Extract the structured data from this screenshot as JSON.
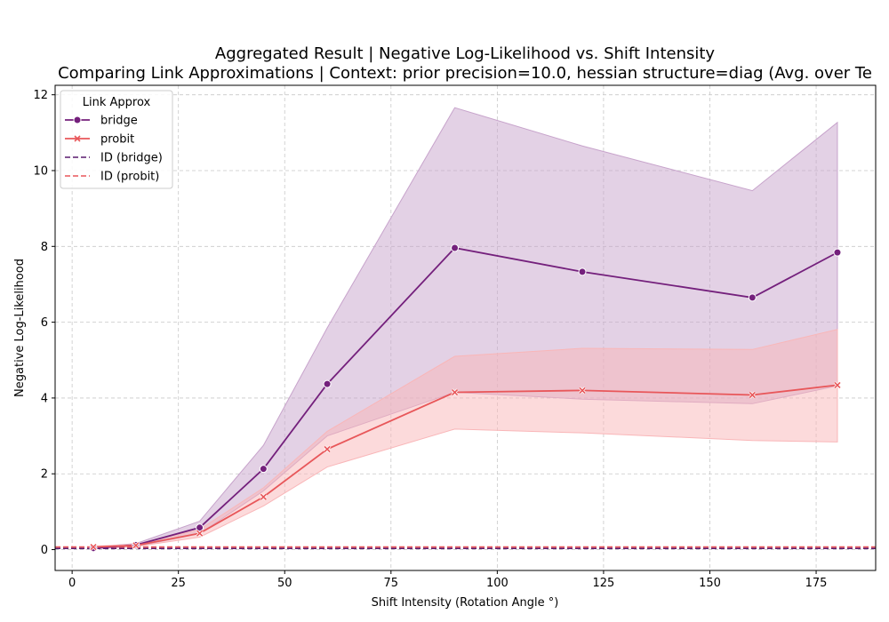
{
  "chart_data": {
    "type": "line",
    "title": "Aggregated Result | Negative Log-Likelihood vs. Shift Intensity",
    "subtitle": "Comparing Link Approximations | Context: prior precision=10.0, hessian structure=diag (Avg. over Te",
    "xlabel": "Shift Intensity (Rotation Angle °)",
    "ylabel": "Negative Log-Likelihood",
    "xlim": [
      -4,
      189
    ],
    "ylim": [
      -0.55,
      12.25
    ],
    "xticks": [
      0,
      25,
      50,
      75,
      100,
      125,
      150,
      175
    ],
    "yticks": [
      0,
      2,
      4,
      6,
      8,
      10,
      12
    ],
    "grid": true,
    "legend": {
      "title": "Link Approx",
      "position": "top-left",
      "entries": [
        {
          "label": "bridge",
          "style": "solid-circle",
          "color": "#74207c"
        },
        {
          "label": "probit",
          "style": "solid-x",
          "color": "#e8575a"
        },
        {
          "label": "ID (bridge)",
          "style": "dashed",
          "color": "#5a1a6e"
        },
        {
          "label": "ID (probit)",
          "style": "dashed",
          "color": "#e8575a"
        }
      ]
    },
    "x": [
      5,
      15,
      30,
      45,
      60,
      90,
      120,
      160,
      180
    ],
    "series": [
      {
        "name": "bridge",
        "color": "#74207c",
        "band_color": "#c7a3cb",
        "marker": "circle",
        "values": [
          0.04,
          0.12,
          0.58,
          2.13,
          4.37,
          7.96,
          7.33,
          6.65,
          7.84
        ],
        "lower": [
          0.02,
          0.08,
          0.42,
          1.55,
          3.0,
          4.15,
          3.97,
          3.85,
          4.32
        ],
        "upper": [
          0.07,
          0.16,
          0.75,
          2.75,
          5.85,
          11.66,
          10.65,
          9.47,
          11.27
        ]
      },
      {
        "name": "probit",
        "color": "#e8575a",
        "band_color": "#f9b6b8",
        "marker": "x",
        "values": [
          0.07,
          0.11,
          0.43,
          1.39,
          2.65,
          4.15,
          4.2,
          4.08,
          4.34
        ],
        "lower": [
          0.05,
          0.08,
          0.33,
          1.15,
          2.18,
          3.18,
          3.08,
          2.88,
          2.84
        ],
        "upper": [
          0.09,
          0.14,
          0.53,
          1.63,
          3.12,
          5.1,
          5.31,
          5.28,
          5.81
        ]
      }
    ],
    "reference_lines": [
      {
        "name": "ID (bridge)",
        "y": 0.03,
        "color": "#5a1a6e",
        "style": "dashed"
      },
      {
        "name": "ID (probit)",
        "y": 0.07,
        "color": "#e8575a",
        "style": "dashed"
      }
    ]
  }
}
